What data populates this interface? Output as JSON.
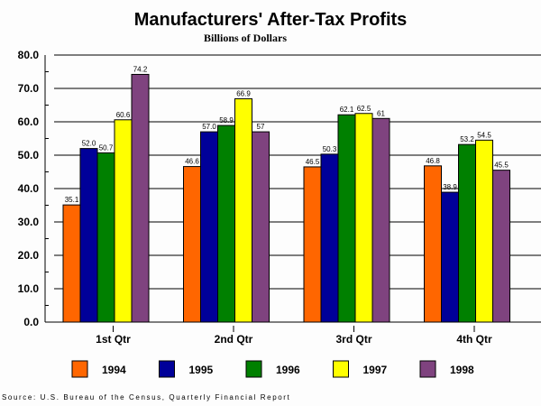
{
  "chart_data": {
    "type": "bar",
    "title": "Manufacturers' After-Tax Profits",
    "subtitle": "Billions of Dollars",
    "xlabel": "",
    "ylabel": "",
    "categories": [
      "1st Qtr",
      "2nd Qtr",
      "3rd Qtr",
      "4th Qtr"
    ],
    "series": [
      {
        "name": "1994",
        "color": "#FF6600",
        "values": [
          35.1,
          46.6,
          46.5,
          46.8
        ],
        "labels": [
          "35.1",
          "46.6",
          "46.5",
          "46.8"
        ]
      },
      {
        "name": "1995",
        "color": "#000099",
        "values": [
          52.0,
          57.0,
          50.3,
          38.9
        ],
        "labels": [
          "52.0",
          "57.0",
          "50.3",
          "38.9"
        ]
      },
      {
        "name": "1996",
        "color": "#008000",
        "values": [
          50.7,
          58.9,
          62.1,
          53.2
        ],
        "labels": [
          "50.7",
          "58.9",
          "62.1",
          "53.2"
        ]
      },
      {
        "name": "1997",
        "color": "#FFFF00",
        "values": [
          60.6,
          66.9,
          62.5,
          54.5
        ],
        "labels": [
          "60.6",
          "66.9",
          "62.5",
          "54.5"
        ]
      },
      {
        "name": "1998",
        "color": "#7F437F",
        "values": [
          74.2,
          57,
          61,
          45.5
        ],
        "labels": [
          "74.2",
          "57",
          "61",
          "45.5"
        ]
      }
    ],
    "ylim": [
      0,
      80
    ],
    "yticks": [
      "0.0",
      "10.0",
      "20.0",
      "30.0",
      "40.0",
      "50.0",
      "60.0",
      "70.0",
      "80.0"
    ],
    "ytick_values": [
      0,
      10,
      20,
      30,
      40,
      50,
      60,
      70,
      80
    ],
    "grid": true,
    "legend_position": "bottom",
    "source": "Source: U.S. Bureau of the Census, Quarterly Financial Report"
  }
}
